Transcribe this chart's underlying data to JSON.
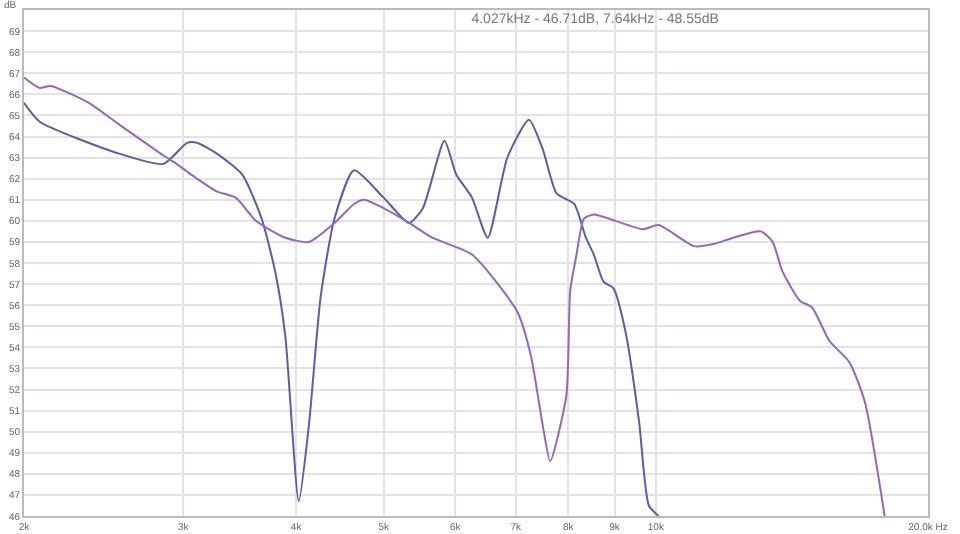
{
  "chart_data": {
    "type": "line",
    "title": "4.027kHz - 46.71dB, 7.64kHz - 48.55dB",
    "ylabel": "dB",
    "log": "x",
    "grid": true,
    "marker": "none",
    "line_style": "solid",
    "xlim": [
      2000,
      20000
    ],
    "xticks": [
      {
        "value": 2000,
        "label": "2k"
      },
      {
        "value": 3000,
        "label": "3k"
      },
      {
        "value": 4000,
        "label": "4k"
      },
      {
        "value": 5000,
        "label": "5k"
      },
      {
        "value": 6000,
        "label": "6k"
      },
      {
        "value": 7000,
        "label": "7k"
      },
      {
        "value": 8000,
        "label": "8k"
      },
      {
        "value": 9000,
        "label": "9k"
      },
      {
        "value": 10000,
        "label": "10k"
      },
      {
        "value": 20000,
        "label": "20.0k Hz"
      }
    ],
    "ylim": [
      46,
      70
    ],
    "yticks": [
      46,
      47,
      48,
      49,
      50,
      51,
      52,
      53,
      54,
      55,
      56,
      57,
      58,
      59,
      60,
      61,
      62,
      63,
      64,
      65,
      66,
      67,
      68,
      69
    ],
    "series": [
      {
        "color": "#5c5ca8",
        "x": [
          2000,
          2082,
          2543,
          2853,
          3030,
          3107,
          3266,
          3486,
          3664,
          3796,
          3892,
          4027,
          4132,
          4258,
          4410,
          4636,
          4998,
          5334,
          5524,
          5836,
          6014,
          6260,
          6516,
          6850,
          7238,
          7496,
          7764,
          8122,
          8368,
          8538,
          8754,
          8976,
          9250,
          9580,
          9822,
          10070
        ],
        "values": [
          65.6,
          64.7,
          63.2,
          62.7,
          63.7,
          63.7,
          63.2,
          62.2,
          60.1,
          57.5,
          54.5,
          46.7,
          50.3,
          56.4,
          60.1,
          62.4,
          61.1,
          59.9,
          60.6,
          63.8,
          62.2,
          61.1,
          59.2,
          63.0,
          64.8,
          63.4,
          61.3,
          60.8,
          59.2,
          58.4,
          57.1,
          56.8,
          54.8,
          50.5,
          46.5,
          46.0
        ]
      },
      {
        "color": "#9468b8",
        "x": [
          2000,
          2082,
          2140,
          2359,
          2543,
          2853,
          2950,
          3107,
          3266,
          3430,
          3610,
          3892,
          4132,
          4410,
          4636,
          4754,
          4998,
          5334,
          5659,
          6260,
          7024,
          7274,
          7496,
          7640,
          7960,
          8040,
          8162,
          8328,
          8538,
          9020,
          9676,
          10070,
          11020,
          11586,
          12180,
          13066,
          13464,
          13804,
          14442,
          14880,
          15564,
          16366,
          17032,
          17908
        ],
        "values": [
          66.8,
          66.3,
          66.4,
          65.6,
          64.6,
          63.1,
          62.7,
          62.0,
          61.4,
          61.1,
          60.0,
          59.2,
          59.0,
          59.9,
          60.8,
          61.0,
          60.6,
          59.9,
          59.2,
          58.4,
          55.7,
          53.6,
          50.3,
          48.6,
          51.7,
          56.7,
          58.3,
          60.1,
          60.3,
          60.0,
          59.6,
          59.8,
          58.8,
          58.9,
          59.2,
          59.5,
          59.0,
          57.6,
          56.2,
          55.9,
          54.3,
          53.3,
          51.4,
          46.0
        ]
      }
    ]
  }
}
